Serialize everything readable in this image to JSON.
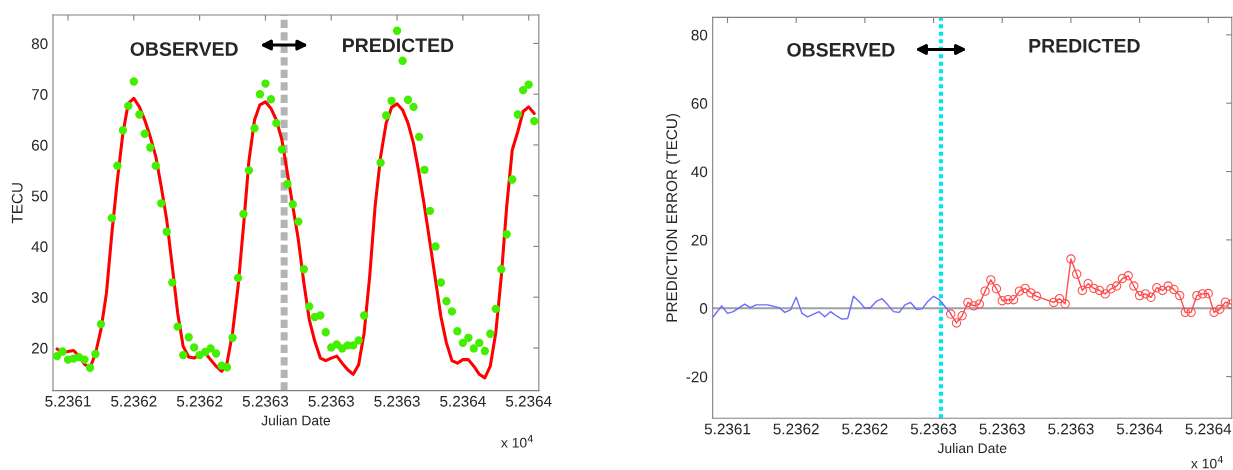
{
  "chart_data": [
    {
      "type": "line",
      "xlabel": "Julian Date",
      "ylabel": "TECU",
      "annotations": [
        "OBSERVED",
        "PREDICTED",
        "x 10$^{4}$"
      ],
      "xlim": [
        5.2360886,
        5.2364577
      ],
      "ylim": [
        11.6,
        85.6
      ],
      "xticks": [
        {
          "value": 5.2361,
          "label": "5.2361"
        },
        {
          "value": 5.23615,
          "label": "5.2362"
        },
        {
          "value": 5.2362,
          "label": "5.2362"
        },
        {
          "value": 5.23625,
          "label": "5.2363"
        },
        {
          "value": 5.2363,
          "label": "5.2363"
        },
        {
          "value": 5.23635,
          "label": "5.2363"
        },
        {
          "value": 5.2364,
          "label": "5.2364"
        },
        {
          "value": 5.23645,
          "label": "5.2364"
        }
      ],
      "yticks": [
        20,
        30,
        40,
        50,
        60,
        70,
        80
      ],
      "grid": false,
      "legend": false,
      "ref_lines": [
        {
          "axis": "x",
          "value": 5.2362642,
          "color": "#b4b4b4",
          "line_style": "dashed"
        }
      ],
      "series": [
        {
          "type": "scatter",
          "marker": "circle",
          "color": "#44ee00",
          "x": [
            5.2360917,
            5.2360958,
            5.2361,
            5.2361042,
            5.2361083,
            5.2361125,
            5.2361167,
            5.2361208,
            5.236125,
            5.2361333,
            5.2361375,
            5.2361417,
            5.2361458,
            5.23615,
            5.2361542,
            5.2361583,
            5.2361625,
            5.2361667,
            5.2361708,
            5.236175,
            5.2361792,
            5.2361833,
            5.2361875,
            5.2361917,
            5.2361958,
            5.2362,
            5.2362042,
            5.2362083,
            5.2362125,
            5.2362167,
            5.2362208,
            5.236225,
            5.2362292,
            5.2362333,
            5.2362375,
            5.2362417,
            5.2362458,
            5.23625,
            5.2362542,
            5.2362583,
            5.2362625,
            5.2362667,
            5.2362708,
            5.236275,
            5.2362792,
            5.2362833,
            5.2362875,
            5.2362917,
            5.2362958,
            5.2363,
            5.2363042,
            5.2363083,
            5.2363125,
            5.2363167,
            5.2363208,
            5.236325,
            5.2363375,
            5.2363417,
            5.2363458,
            5.23635,
            5.2363542,
            5.2363583,
            5.2363625,
            5.2363667,
            5.2363708,
            5.236375,
            5.2363792,
            5.2363833,
            5.2363875,
            5.2363917,
            5.2363958,
            5.2364,
            5.2364042,
            5.2364083,
            5.2364125,
            5.2364167,
            5.2364208,
            5.236425,
            5.2364292,
            5.2364333,
            5.2364375,
            5.2364417,
            5.2364458,
            5.23645,
            5.2364542
          ],
          "values": [
            18.4,
            19.3,
            17.7,
            17.9,
            18.2,
            17.7,
            16.1,
            18.8,
            24.7,
            45.6,
            55.9,
            62.9,
            67.7,
            72.5,
            66.0,
            62.2,
            59.5,
            55.9,
            48.5,
            42.9,
            32.9,
            24.2,
            18.6,
            22.1,
            20.1,
            18.6,
            19.2,
            19.9,
            18.9,
            16.5,
            16.2,
            22.0,
            33.8,
            46.4,
            55.0,
            63.3,
            70.0,
            72.1,
            69.0,
            64.3,
            59.1,
            52.3,
            48.3,
            44.9,
            35.5,
            28.2,
            26.1,
            26.4,
            23.1,
            20.1,
            20.7,
            19.9,
            20.5,
            20.5,
            21.5,
            26.4,
            56.5,
            65.8,
            68.7,
            82.5,
            76.6,
            68.9,
            67.5,
            61.6,
            55.1,
            47.0,
            40.0,
            32.9,
            29.2,
            27.2,
            23.3,
            21.0,
            22.0,
            19.9,
            21.0,
            19.4,
            22.8,
            27.7,
            35.5,
            42.4,
            53.2,
            66.0,
            70.8,
            71.9,
            64.7
          ]
        },
        {
          "type": "line",
          "marker": "none",
          "line_style": "solid",
          "color": "#ff0000",
          "x": [
            5.2360917,
            5.2360958,
            5.2361,
            5.2361042,
            5.2361083,
            5.2361125,
            5.2361167,
            5.2361208,
            5.236125,
            5.2361292,
            5.2361333,
            5.2361375,
            5.2361417,
            5.2361458,
            5.23615,
            5.2361542,
            5.2361583,
            5.2361625,
            5.2361667,
            5.2361708,
            5.236175,
            5.2361792,
            5.2361833,
            5.2361875,
            5.2361917,
            5.2361958,
            5.2362,
            5.2362042,
            5.2362083,
            5.2362125,
            5.2362167,
            5.2362208,
            5.236225,
            5.2362292,
            5.2362333,
            5.2362375,
            5.2362417,
            5.2362458,
            5.23625,
            5.2362542,
            5.2362583,
            5.2362625,
            5.2362667,
            5.2362708,
            5.236275,
            5.2362792,
            5.2362833,
            5.2362875,
            5.2362917,
            5.2362958,
            5.2363,
            5.2363042,
            5.2363083,
            5.2363125,
            5.2363167,
            5.2363208,
            5.236325,
            5.2363292,
            5.2363333,
            5.2363375,
            5.2363417,
            5.2363458,
            5.23635,
            5.2363542,
            5.2363583,
            5.2363625,
            5.2363667,
            5.2363708,
            5.236375,
            5.2363792,
            5.2363833,
            5.2363875,
            5.2363917,
            5.2363958,
            5.2364,
            5.2364042,
            5.2364083,
            5.2364125,
            5.2364167,
            5.2364208,
            5.236425,
            5.2364292,
            5.2364333,
            5.2364375,
            5.2364417,
            5.2364458,
            5.23645,
            5.2364542
          ],
          "values": [
            19.8,
            19.1,
            19.3,
            19.5,
            18.4,
            16.8,
            16.1,
            18.8,
            23.6,
            30.8,
            42.6,
            53.1,
            62.3,
            68.2,
            69.2,
            67.5,
            64.9,
            61.6,
            57.7,
            51.8,
            45.2,
            36.1,
            26.9,
            20.3,
            18.2,
            18.0,
            18.7,
            19.0,
            17.7,
            16.4,
            15.4,
            17.0,
            23.0,
            32.1,
            43.9,
            57.0,
            64.9,
            67.9,
            68.5,
            67.2,
            64.9,
            61.0,
            54.4,
            47.9,
            41.3,
            32.8,
            25.6,
            21.3,
            18.0,
            17.5,
            18.0,
            18.4,
            17.0,
            15.7,
            14.8,
            16.7,
            23.0,
            34.1,
            47.9,
            57.7,
            64.3,
            67.4,
            68.1,
            66.9,
            64.3,
            60.3,
            54.4,
            47.9,
            40.7,
            33.4,
            26.2,
            21.0,
            17.5,
            17.0,
            17.7,
            17.7,
            16.4,
            14.8,
            14.1,
            16.4,
            23.0,
            34.1,
            47.9,
            59.0,
            62.6,
            66.6,
            67.5,
            66.2
          ]
        }
      ]
    },
    {
      "type": "line",
      "xlabel": "Julian Date",
      "ylabel": "PREDICTION ERROR (TECU)",
      "annotations": [
        "OBSERVED",
        "PREDICTED",
        "x 10$^{4}$"
      ],
      "xlim": [
        5.2360892,
        5.2364671
      ],
      "ylim": [
        -32.2,
        85.1
      ],
      "xticks": [
        {
          "value": 5.2361,
          "label": "5.2361"
        },
        {
          "value": 5.23615,
          "label": "5.2362"
        },
        {
          "value": 5.2362,
          "label": "5.2362"
        },
        {
          "value": 5.23625,
          "label": "5.2363"
        },
        {
          "value": 5.2363,
          "label": "5.2363"
        },
        {
          "value": 5.23635,
          "label": "5.2363"
        },
        {
          "value": 5.2364,
          "label": "5.2364"
        },
        {
          "value": 5.23645,
          "label": "5.2364"
        }
      ],
      "yticks": [
        -20,
        0,
        20,
        40,
        60,
        80
      ],
      "grid": false,
      "legend": false,
      "ref_lines": [
        {
          "axis": "y",
          "value": 0,
          "color": "#a0a0a0",
          "line_style": "solid"
        },
        {
          "axis": "x",
          "value": 5.2362554,
          "color": "#00e5f0",
          "line_style": "dotted"
        }
      ],
      "series": [
        {
          "type": "line",
          "marker": "none",
          "line_style": "solid",
          "color": "#6a6aff",
          "x": [
            5.2360896,
            5.2360958,
            5.2361,
            5.2361042,
            5.2361125,
            5.2361167,
            5.2361208,
            5.2361292,
            5.2361375,
            5.2361417,
            5.2361458,
            5.23615,
            5.2361542,
            5.2361583,
            5.2361667,
            5.2361708,
            5.236175,
            5.2361792,
            5.2361833,
            5.2361875,
            5.2361917,
            5.2361958,
            5.2362,
            5.2362042,
            5.2362083,
            5.2362125,
            5.2362167,
            5.2362208,
            5.236225,
            5.2362292,
            5.2362333,
            5.2362375,
            5.2362417,
            5.2362458,
            5.23625,
            5.2362542,
            5.2362583,
            5.2362625
          ],
          "values": [
            -2.5,
            0.7,
            -1.5,
            -1.0,
            1.2,
            0.2,
            1.0,
            1.0,
            0.2,
            -1.2,
            -0.5,
            3.2,
            -1.5,
            -2.5,
            -1.0,
            -2.5,
            -1.0,
            -2.2,
            -3.2,
            -3.0,
            3.5,
            2.0,
            0.0,
            0.2,
            2.0,
            2.8,
            1.0,
            -1.0,
            -1.2,
            1.0,
            1.7,
            -0.3,
            -0.2,
            2.0,
            3.5,
            2.5,
            0.5,
            -1.5
          ]
        },
        {
          "type": "line",
          "marker": "circle",
          "line_style": "solid",
          "color": "#ff4a4a",
          "x": [
            5.2362625,
            5.2362667,
            5.2362708,
            5.236275,
            5.2362792,
            5.2362833,
            5.2362875,
            5.2362917,
            5.2362958,
            5.2363,
            5.2363042,
            5.2363083,
            5.2363125,
            5.2363167,
            5.2363208,
            5.236325,
            5.2363375,
            5.2363417,
            5.2363458,
            5.23635,
            5.2363542,
            5.2363583,
            5.2363625,
            5.2363667,
            5.2363708,
            5.236375,
            5.2363792,
            5.2363833,
            5.2363875,
            5.2363917,
            5.2363958,
            5.2364,
            5.2364042,
            5.2364083,
            5.2364125,
            5.2364167,
            5.2364208,
            5.236425,
            5.2364292,
            5.2364333,
            5.2364375,
            5.2364417,
            5.2364458,
            5.23645,
            5.2364542,
            5.2364583,
            5.2364625,
            5.2364667
          ],
          "values": [
            -1.7,
            -4.3,
            -2.2,
            1.7,
            0.7,
            1.2,
            5.0,
            8.3,
            5.7,
            2.2,
            2.5,
            2.5,
            5.0,
            5.8,
            4.5,
            3.5,
            1.7,
            2.8,
            1.3,
            14.4,
            10.0,
            5.2,
            7.2,
            5.8,
            5.2,
            4.2,
            5.7,
            6.5,
            8.7,
            9.5,
            6.5,
            3.7,
            4.2,
            3.2,
            6.0,
            5.2,
            6.5,
            5.5,
            3.7,
            -1.2,
            -1.2,
            3.7,
            4.2,
            4.3,
            -1.2,
            -0.3,
            1.8,
            1.2
          ]
        }
      ]
    }
  ]
}
